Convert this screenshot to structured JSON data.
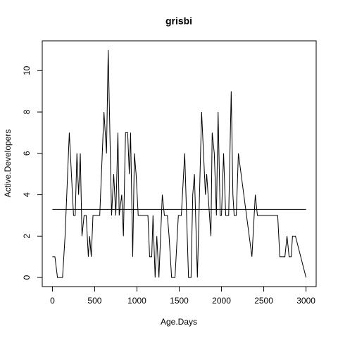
{
  "chart_data": {
    "type": "line",
    "title": "grisbi",
    "x_label": "Age.Days",
    "y_label": "Active.Developers",
    "x": [
      0,
      30,
      60,
      120,
      150,
      200,
      250,
      270,
      290,
      310,
      330,
      350,
      375,
      400,
      425,
      440,
      460,
      480,
      560,
      610,
      640,
      660,
      700,
      725,
      750,
      775,
      790,
      820,
      840,
      865,
      890,
      910,
      925,
      950,
      970,
      990,
      1015,
      1130,
      1150,
      1175,
      1190,
      1215,
      1235,
      1260,
      1300,
      1325,
      1360,
      1380,
      1410,
      1450,
      1490,
      1525,
      1565,
      1610,
      1640,
      1660,
      1680,
      1715,
      1765,
      1810,
      1825,
      1875,
      1890,
      1915,
      1940,
      1960,
      1985,
      2000,
      2025,
      2050,
      2085,
      2115,
      2135,
      2150,
      2175,
      2200,
      2360,
      2400,
      2425,
      2665,
      2690,
      2750,
      2775,
      2800,
      2825,
      2840,
      2875,
      3000
    ],
    "series": [
      {
        "name": "Active.Developers",
        "color": "#000000",
        "values": [
          1,
          1,
          0,
          0,
          2,
          7,
          3,
          3,
          6,
          4,
          6,
          2,
          3,
          3,
          1,
          2,
          1,
          3,
          3,
          8,
          6,
          11,
          3,
          5,
          3,
          7,
          3,
          4,
          2,
          7,
          7,
          5,
          7,
          1,
          6,
          5,
          3,
          3,
          1,
          1,
          3,
          0,
          2,
          0,
          4,
          3,
          3,
          2,
          0,
          0,
          3,
          3,
          6,
          0,
          0,
          4,
          5,
          0,
          8,
          4,
          5,
          2,
          7,
          6,
          3,
          8,
          3,
          3,
          6,
          3,
          3,
          9,
          4,
          3,
          3,
          6,
          1,
          4,
          3,
          3,
          1,
          1,
          2,
          1,
          1,
          2,
          2,
          0
        ]
      }
    ],
    "reference_line": {
      "value": 3.29,
      "color": "#000000",
      "x_range": [
        0,
        3000
      ]
    },
    "xlim": [
      -120,
      3120
    ],
    "ylim": [
      -0.44,
      11.44
    ],
    "xticks": [
      0,
      500,
      1000,
      1500,
      2000,
      2500,
      3000
    ],
    "yticks": [
      0,
      2,
      4,
      6,
      8,
      10
    ],
    "grid": false
  }
}
